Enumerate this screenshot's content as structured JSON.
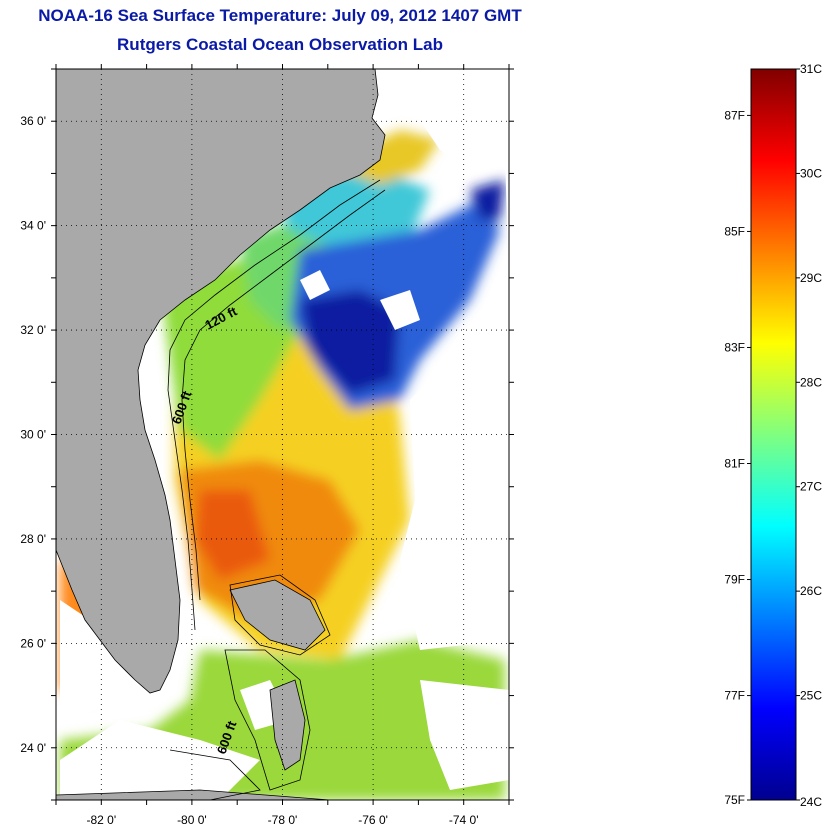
{
  "header": {
    "title": "NOAA-16 Sea Surface Temperature:  July 09, 2012 1407 GMT",
    "subtitle": "Rutgers Coastal Ocean Observation Lab"
  },
  "map": {
    "lon_range": [
      -83,
      -73
    ],
    "lat_range": [
      23,
      37
    ],
    "lon_ticks": [
      {
        "value": -82,
        "label": "-82 0'"
      },
      {
        "value": -80,
        "label": "-80 0'"
      },
      {
        "value": -78,
        "label": "-78 0'"
      },
      {
        "value": -76,
        "label": "-76 0'"
      },
      {
        "value": -74,
        "label": "-74 0'"
      }
    ],
    "lat_ticks": [
      {
        "value": 24,
        "label": "24 0'"
      },
      {
        "value": 26,
        "label": "26 0'"
      },
      {
        "value": 28,
        "label": "28 0'"
      },
      {
        "value": 30,
        "label": "30 0'"
      },
      {
        "value": 32,
        "label": "32 0'"
      },
      {
        "value": 34,
        "label": "34 0'"
      },
      {
        "value": 36,
        "label": "36 0'"
      }
    ],
    "contour_labels": {
      "c120": "120 ft",
      "c600a": "600 ft",
      "c600b": "600 ft"
    },
    "land_color": "#a9a9a9",
    "grid": true
  },
  "colorbar": {
    "celsius_range": [
      24,
      31
    ],
    "celsius_labels": [
      {
        "value": 31,
        "label": "31C"
      },
      {
        "value": 30,
        "label": "30C"
      },
      {
        "value": 29,
        "label": "29C"
      },
      {
        "value": 28,
        "label": "28C"
      },
      {
        "value": 27,
        "label": "27C"
      },
      {
        "value": 26,
        "label": "26C"
      },
      {
        "value": 25,
        "label": "25C"
      },
      {
        "value": 24,
        "label": "24C"
      }
    ],
    "fahrenheit_labels": [
      {
        "value": 87,
        "label": "87F"
      },
      {
        "value": 85,
        "label": "85F"
      },
      {
        "value": 83,
        "label": "83F"
      },
      {
        "value": 81,
        "label": "81F"
      },
      {
        "value": 79,
        "label": "79F"
      },
      {
        "value": 77,
        "label": "77F"
      },
      {
        "value": 75,
        "label": "75F"
      }
    ],
    "colormap": "jet"
  }
}
